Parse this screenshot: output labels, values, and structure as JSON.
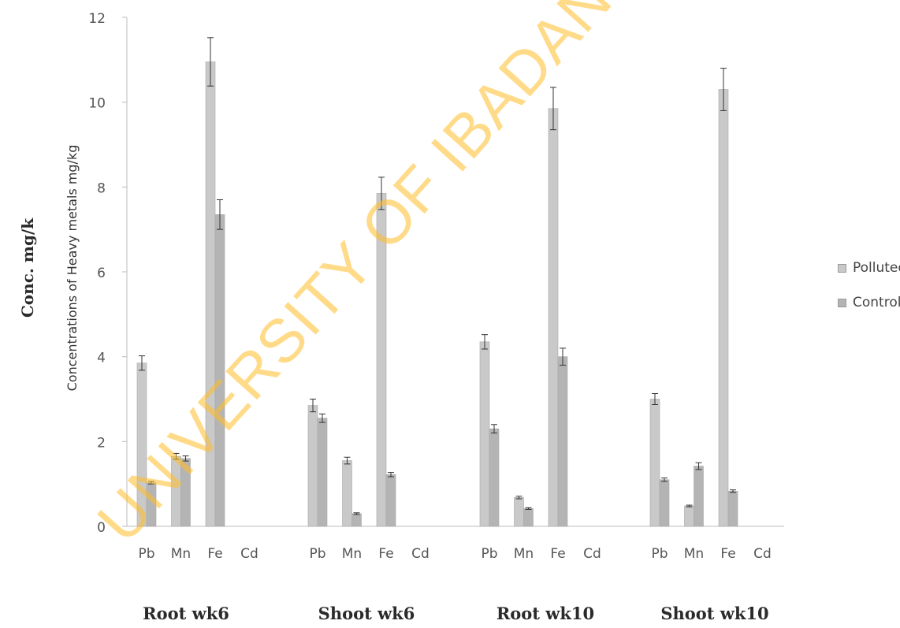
{
  "outer_ylabel": "Conc. mg/k",
  "watermark": "UNIVERSITY OF IBADAN",
  "group_labels": [
    "Root wk6",
    "Shoot wk6",
    "Root wk10",
    "Shoot wk10"
  ],
  "colors": {
    "polluted": "#c9c9c9",
    "control": "#b4b4b4",
    "axis": "#bcbcbc",
    "text": "#555555"
  },
  "chart_data": {
    "type": "bar",
    "title": "",
    "xlabel": "",
    "ylabel": "Concentrations of Heavy metals mg/kg",
    "ylim": [
      0,
      12
    ],
    "yticks": [
      0,
      2,
      4,
      6,
      8,
      10,
      12
    ],
    "grid": false,
    "legend_position": "right",
    "groups": [
      "Root wk6",
      "Shoot wk6",
      "Root wk10",
      "Shoot wk10"
    ],
    "categories": [
      "Pb",
      "Mn",
      "Fe",
      "Cd"
    ],
    "series": [
      {
        "name": "Polluted",
        "values": [
          [
            3.85,
            1.65,
            10.95,
            0
          ],
          [
            2.85,
            1.55,
            7.85,
            0
          ],
          [
            4.35,
            0.68,
            9.85,
            0
          ],
          [
            3.0,
            0.48,
            10.3,
            0
          ]
        ],
        "errors": [
          [
            0.17,
            0.07,
            0.57,
            0
          ],
          [
            0.15,
            0.08,
            0.38,
            0
          ],
          [
            0.17,
            0.03,
            0.5,
            0
          ],
          [
            0.13,
            0.02,
            0.5,
            0
          ]
        ]
      },
      {
        "name": "Control",
        "values": [
          [
            1.03,
            1.6,
            7.35,
            0
          ],
          [
            2.55,
            0.3,
            1.22,
            0
          ],
          [
            2.3,
            0.42,
            4.0,
            0
          ],
          [
            1.1,
            1.42,
            0.83,
            0
          ]
        ],
        "errors": [
          [
            0.03,
            0.06,
            0.35,
            0
          ],
          [
            0.1,
            0.02,
            0.05,
            0
          ],
          [
            0.1,
            0.02,
            0.2,
            0
          ],
          [
            0.04,
            0.08,
            0.03,
            0
          ]
        ]
      }
    ]
  }
}
